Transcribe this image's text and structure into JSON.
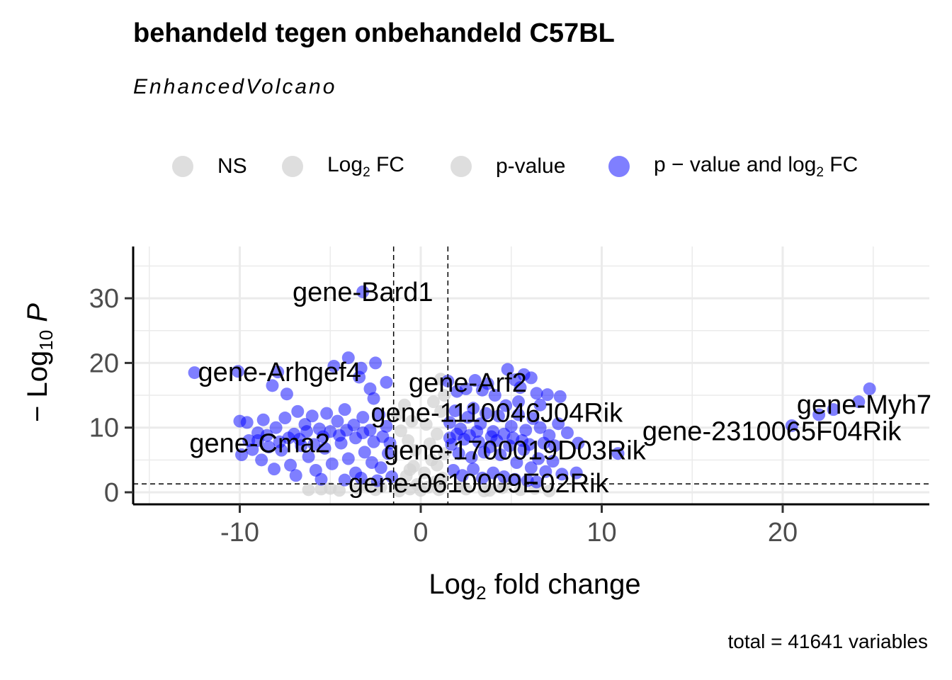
{
  "title": "behandeld tegen onbehandeld C57BL",
  "subtitle": "EnhancedVolcano",
  "caption": "total = 41641 variables",
  "legend": [
    {
      "label": "NS",
      "sub": "",
      "suffix": "",
      "color": "#d3d3d3"
    },
    {
      "label": "Log",
      "sub": "2",
      "suffix": " FC",
      "color": "#d3d3d3"
    },
    {
      "label": "p-value",
      "sub": "",
      "suffix": "",
      "color": "#d3d3d3"
    },
    {
      "label": "p − value and log",
      "sub": "2",
      "suffix": " FC",
      "color": "#0000ff"
    }
  ],
  "chart_data": {
    "type": "scatter",
    "title": "behandeld tegen onbehandeld C57BL",
    "subtitle": "EnhancedVolcano",
    "xlabel": "Log2 fold change",
    "ylabel": "− Log10 P",
    "xlim": [
      -15.5,
      28
    ],
    "ylim": [
      -2,
      37.5
    ],
    "x_ticks": [
      -10,
      0,
      10,
      20
    ],
    "x_tick_labels": [
      "-10",
      "0",
      "10",
      "20"
    ],
    "y_ticks": [
      0,
      10,
      20,
      30
    ],
    "y_tick_labels": [
      "0",
      "10",
      "20",
      "30"
    ],
    "grid": true,
    "legend_position": "top",
    "thresholds": {
      "fc_cutoff": [
        -1.5,
        1.5
      ],
      "p_cutoff_neglog10": 1.3
    },
    "series": [
      {
        "name": "NS",
        "color": "#d3d3d3",
        "points": [
          [
            -1.2,
            0.2
          ],
          [
            -1.0,
            1.0
          ],
          [
            -0.8,
            2.5
          ],
          [
            -0.6,
            0.5
          ],
          [
            -0.4,
            4.0
          ],
          [
            -0.2,
            1.2
          ],
          [
            0.0,
            0.3
          ],
          [
            0.2,
            3.0
          ],
          [
            0.4,
            0.8
          ],
          [
            0.6,
            5.0
          ],
          [
            0.8,
            1.6
          ],
          [
            1.0,
            0.4
          ],
          [
            1.2,
            2.2
          ],
          [
            -2.5,
            0.4
          ],
          [
            -3.5,
            0.6
          ],
          [
            -4.5,
            0.3
          ],
          [
            2.5,
            0.5
          ],
          [
            3.5,
            0.2
          ],
          [
            4.5,
            0.7
          ],
          [
            -5.5,
            0.5
          ],
          [
            5.5,
            0.4
          ]
        ]
      },
      {
        "name": "Log2 FC",
        "color": "#d3d3d3",
        "points": [
          [
            -6.2,
            0.4
          ],
          [
            -5.0,
            0.6
          ],
          [
            -2.2,
            0.8
          ],
          [
            2.2,
            0.9
          ],
          [
            3.8,
            0.3
          ],
          [
            6.3,
            0.6
          ],
          [
            7.1,
            0.2
          ],
          [
            -3.0,
            1.1
          ],
          [
            4.6,
            1.0
          ]
        ]
      },
      {
        "name": "p-value",
        "color": "#d3d3d3",
        "points": [
          [
            -1.3,
            12.0
          ],
          [
            -1.1,
            9.5
          ],
          [
            -0.9,
            13.5
          ],
          [
            -0.7,
            8.0
          ],
          [
            -0.5,
            11.0
          ],
          [
            -0.3,
            6.5
          ],
          [
            0.3,
            10.5
          ],
          [
            0.5,
            7.5
          ],
          [
            0.7,
            14.0
          ],
          [
            0.9,
            9.0
          ],
          [
            1.1,
            12.5
          ],
          [
            1.3,
            6.0
          ],
          [
            -0.6,
            3.5
          ],
          [
            0.9,
            4.2
          ],
          [
            1.1,
            17.5
          ],
          [
            1.3,
            15.0
          ]
        ]
      },
      {
        "name": "p − value and log2 FC",
        "color": "#0000ff",
        "points": [
          [
            -3.2,
            31.0
          ],
          [
            -12.5,
            18.5
          ],
          [
            -10.1,
            18.7
          ],
          [
            -8.2,
            16.5
          ],
          [
            -7.9,
            18.6
          ],
          [
            -7.4,
            15.2
          ],
          [
            -4.8,
            19.5
          ],
          [
            -4.0,
            20.8
          ],
          [
            -3.4,
            17.8
          ],
          [
            -3.3,
            19.2
          ],
          [
            -2.5,
            20.0
          ],
          [
            -1.9,
            17.0
          ],
          [
            -2.8,
            16.0
          ],
          [
            -2.6,
            14.5
          ],
          [
            -10.0,
            11.0
          ],
          [
            -9.6,
            10.8
          ],
          [
            -9.0,
            9.2
          ],
          [
            -9.5,
            8.0
          ],
          [
            -8.7,
            11.2
          ],
          [
            -8.0,
            10.0
          ],
          [
            -8.4,
            7.0
          ],
          [
            -7.5,
            11.5
          ],
          [
            -7.0,
            9.0
          ],
          [
            -6.8,
            12.5
          ],
          [
            -6.4,
            10.5
          ],
          [
            -6.0,
            11.8
          ],
          [
            -5.6,
            9.8
          ],
          [
            -5.2,
            12.2
          ],
          [
            -4.6,
            11.0
          ],
          [
            -4.2,
            12.8
          ],
          [
            -3.7,
            10.4
          ],
          [
            -3.2,
            11.6
          ],
          [
            -2.8,
            9.6
          ],
          [
            -2.3,
            12.0
          ],
          [
            -1.9,
            10.2
          ],
          [
            -8.8,
            5.0
          ],
          [
            -8.1,
            3.6
          ],
          [
            -7.7,
            6.5
          ],
          [
            -7.2,
            4.2
          ],
          [
            -6.6,
            7.2
          ],
          [
            -6.2,
            5.5
          ],
          [
            -5.8,
            3.4
          ],
          [
            -5.3,
            6.8
          ],
          [
            -4.9,
            4.4
          ],
          [
            -4.4,
            7.6
          ],
          [
            -4.0,
            5.2
          ],
          [
            -3.6,
            3.0
          ],
          [
            -3.1,
            6.2
          ],
          [
            -2.7,
            4.6
          ],
          [
            -2.2,
            3.8
          ],
          [
            -1.8,
            6.0
          ],
          [
            -1.6,
            2.4
          ],
          [
            -6.9,
            2.6
          ],
          [
            -5.5,
            2.0
          ],
          [
            -4.2,
            1.9
          ],
          [
            -3.3,
            2.2
          ],
          [
            -2.4,
            1.8
          ],
          [
            -9.9,
            5.8
          ],
          [
            -9.3,
            6.6
          ],
          [
            -9.0,
            8.0
          ],
          [
            -8.5,
            8.8
          ],
          [
            -7.8,
            7.8
          ],
          [
            -7.3,
            8.4
          ],
          [
            -6.7,
            8.2
          ],
          [
            -6.3,
            9.4
          ],
          [
            -5.9,
            7.4
          ],
          [
            -5.4,
            8.6
          ],
          [
            -5.0,
            9.4
          ],
          [
            -4.5,
            8.8
          ],
          [
            -4.1,
            9.6
          ],
          [
            -3.6,
            8.4
          ],
          [
            -3.2,
            9.2
          ],
          [
            -2.6,
            7.8
          ],
          [
            -2.1,
            8.6
          ],
          [
            -1.7,
            7.6
          ],
          [
            1.5,
            17.2
          ],
          [
            2.0,
            15.6
          ],
          [
            2.5,
            16.0
          ],
          [
            3.0,
            17.3
          ],
          [
            3.4,
            15.8
          ],
          [
            3.7,
            16.8
          ],
          [
            4.1,
            15.0
          ],
          [
            4.8,
            19.0
          ],
          [
            5.2,
            17.4
          ],
          [
            5.5,
            16.2
          ],
          [
            5.7,
            18.2
          ],
          [
            6.1,
            17.7
          ],
          [
            6.4,
            15.3
          ],
          [
            7.0,
            15.1
          ],
          [
            7.7,
            14.8
          ],
          [
            6.6,
            13.5
          ],
          [
            5.4,
            14.0
          ],
          [
            1.6,
            10.8
          ],
          [
            1.9,
            12.6
          ],
          [
            2.2,
            9.8
          ],
          [
            2.6,
            11.6
          ],
          [
            2.9,
            13.0
          ],
          [
            3.3,
            10.6
          ],
          [
            3.6,
            12.2
          ],
          [
            4.0,
            9.4
          ],
          [
            4.3,
            11.8
          ],
          [
            4.7,
            13.4
          ],
          [
            5.0,
            10.2
          ],
          [
            5.4,
            12.0
          ],
          [
            5.8,
            9.6
          ],
          [
            6.2,
            11.4
          ],
          [
            6.6,
            10.0
          ],
          [
            7.1,
            8.8
          ],
          [
            7.6,
            10.6
          ],
          [
            8.1,
            9.2
          ],
          [
            8.7,
            7.6
          ],
          [
            1.7,
            7.4
          ],
          [
            2.1,
            6.0
          ],
          [
            2.4,
            8.2
          ],
          [
            2.8,
            5.4
          ],
          [
            3.2,
            7.8
          ],
          [
            3.5,
            6.2
          ],
          [
            3.9,
            8.6
          ],
          [
            4.4,
            5.8
          ],
          [
            4.9,
            7.2
          ],
          [
            5.3,
            4.6
          ],
          [
            5.7,
            6.6
          ],
          [
            6.1,
            3.8
          ],
          [
            6.5,
            5.2
          ],
          [
            6.9,
            3.2
          ],
          [
            7.3,
            4.8
          ],
          [
            7.8,
            2.8
          ],
          [
            8.6,
            3.0
          ],
          [
            1.8,
            3.4
          ],
          [
            2.3,
            2.6
          ],
          [
            2.9,
            3.6
          ],
          [
            3.4,
            2.2
          ],
          [
            4.0,
            3.0
          ],
          [
            4.6,
            2.4
          ],
          [
            5.2,
            2.0
          ],
          [
            5.9,
            1.8
          ],
          [
            6.4,
            1.6
          ],
          [
            1.6,
            8.4
          ],
          [
            2.0,
            9.0
          ],
          [
            2.7,
            8.8
          ],
          [
            3.1,
            9.4
          ],
          [
            3.8,
            7.0
          ],
          [
            4.2,
            8.0
          ],
          [
            4.6,
            9.0
          ],
          [
            5.1,
            8.4
          ],
          [
            5.6,
            8.0
          ],
          [
            6.0,
            7.4
          ],
          [
            6.8,
            7.6
          ],
          [
            7.4,
            7.2
          ],
          [
            10.9,
            6.0
          ],
          [
            20.5,
            10.3
          ],
          [
            22.0,
            12.0
          ],
          [
            22.8,
            12.8
          ],
          [
            24.2,
            14.0
          ],
          [
            24.8,
            16.0
          ]
        ]
      }
    ],
    "labels": [
      {
        "text": "gene-Bard1",
        "x": -3.2,
        "y": 31.0
      },
      {
        "text": "gene-Arhgef4",
        "x": -7.8,
        "y": 18.6
      },
      {
        "text": "gene-Arf2",
        "x": 2.6,
        "y": 17.0
      },
      {
        "text": "gene-1110046J04Rik",
        "x": 4.2,
        "y": 12.3
      },
      {
        "text": "gene-Myh7",
        "x": 24.5,
        "y": 13.6
      },
      {
        "text": "gene-2310065F04Rik",
        "x": 19.4,
        "y": 9.5
      },
      {
        "text": "gene-Cma2",
        "x": -8.9,
        "y": 7.6
      },
      {
        "text": "gene-1700019D03Rik",
        "x": 5.2,
        "y": 6.5
      },
      {
        "text": "gene-0610009E02Rik",
        "x": 3.2,
        "y": 1.4
      }
    ]
  }
}
